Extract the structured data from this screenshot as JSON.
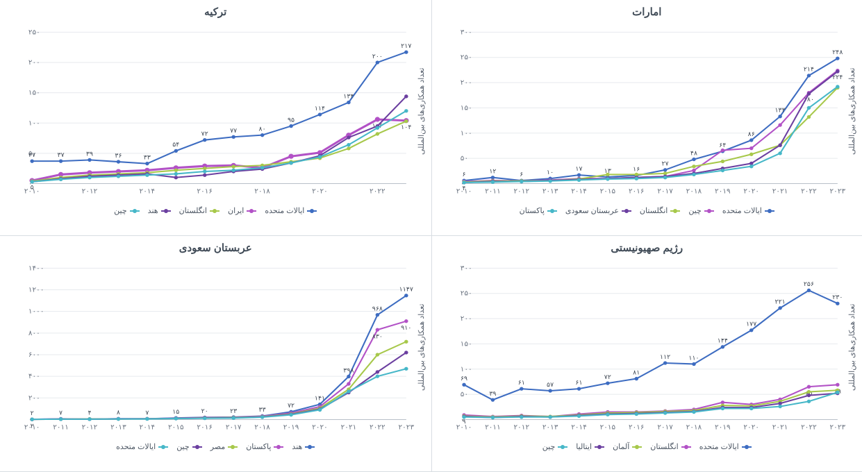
{
  "global": {
    "yaxis_label": "تعداد همکاری‌های بین‌المللی",
    "background_color": "#ffffff",
    "grid_color": "#e7eaee",
    "axis_color": "#b8c0c9",
    "tick_fontsize": 10,
    "title_fontsize": 15,
    "label_fontsize": 11,
    "datalabel_fontsize": 9,
    "datalabel_color": "#3d4652"
  },
  "panels": [
    {
      "id": "uae",
      "title": "امارات",
      "type": "line",
      "xlabels": [
        "۲۰۱۰",
        "۲۰۱۱",
        "۲۰۱۲",
        "۲۰۱۳",
        "۲۰۱۴",
        "۲۰۱۵",
        "۲۰۱۶",
        "۲۰۱۷",
        "۲۰۱۸",
        "۲۰۱۹",
        "۲۰۲۰",
        "۲۰۲۱",
        "۲۰۲۲",
        "۲۰۲۳"
      ],
      "ylim": [
        0,
        300
      ],
      "ytick_step": 50,
      "series": [
        {
          "name": "ایالات متحده",
          "color": "#3d6cc1",
          "values": [
            6,
            12,
            6,
            10,
            17,
            13,
            16,
            27,
            48,
            64,
            86,
            133,
            214,
            248
          ]
        },
        {
          "name": "چین",
          "color": "#b251c6",
          "values": [
            4,
            6,
            5,
            7,
            10,
            10,
            12,
            14,
            26,
            66,
            70,
            116,
            180,
            224
          ]
        },
        {
          "name": "انگلستان",
          "color": "#a7c84a",
          "values": [
            3,
            5,
            5,
            6,
            9,
            18,
            18,
            20,
            34,
            44,
            58,
            76,
            132,
            190
          ]
        },
        {
          "name": "عربستان سعودی",
          "color": "#6b3fa0",
          "values": [
            2,
            4,
            4,
            6,
            8,
            10,
            12,
            14,
            20,
            30,
            40,
            76,
            178,
            222
          ]
        },
        {
          "name": "پاکستان",
          "color": "#46b7c8",
          "values": [
            2,
            3,
            4,
            5,
            7,
            9,
            10,
            12,
            18,
            26,
            34,
            60,
            150,
            192
          ]
        }
      ],
      "toplabel_series": 0
    },
    {
      "id": "turkiye",
      "title": "ترکیه",
      "type": "line",
      "xlabels": [
        "۲۰۱۰",
        "",
        "۲۰۱۲",
        "",
        "۲۰۱۴",
        "",
        "۲۰۱۶",
        "",
        "۲۰۱۸",
        "",
        "۲۰۲۰",
        "",
        "۲۰۲۲",
        ""
      ],
      "ylim": [
        0,
        250
      ],
      "ytick_step": 50,
      "series": [
        {
          "name": "ایالات متحده",
          "color": "#3d6cc1",
          "values": [
            37,
            37,
            39,
            36,
            33,
            54,
            72,
            77,
            80,
            95,
            114,
            134,
            200,
            217
          ]
        },
        {
          "name": "ایران",
          "color": "#b251c6",
          "values": [
            5,
            15,
            18,
            20,
            22,
            26,
            29,
            30,
            26,
            45,
            51,
            80,
            106,
            104
          ],
          "line_width": 3
        },
        {
          "name": "انگلستان",
          "color": "#a7c84a",
          "values": [
            4,
            10,
            14,
            16,
            18,
            22,
            25,
            28,
            30,
            36,
            42,
            58,
            82,
            103
          ]
        },
        {
          "name": "هند",
          "color": "#6b3fa0",
          "values": [
            3,
            8,
            12,
            14,
            16,
            10,
            14,
            20,
            24,
            34,
            46,
            76,
            95,
            144
          ]
        },
        {
          "name": "چین",
          "color": "#46b7c8",
          "values": [
            3,
            7,
            10,
            12,
            14,
            16,
            20,
            22,
            26,
            34,
            44,
            64,
            92,
            120
          ]
        }
      ],
      "toplabel_series": 0
    },
    {
      "id": "israel",
      "title": "رژیم صهیونیستی",
      "type": "line",
      "xlabels": [
        "۲۰۱۰",
        "۲۰۱۱",
        "۲۰۱۲",
        "۲۰۱۳",
        "۲۰۱۴",
        "۲۰۱۵",
        "۲۰۱۶",
        "۲۰۱۷",
        "۲۰۱۸",
        "۲۰۱۹",
        "۲۰۲۰",
        "۲۰۲۱",
        "۲۰۲۲",
        "۲۰۲۳"
      ],
      "ylim": [
        0,
        300
      ],
      "ytick_step": 50,
      "series": [
        {
          "name": "ایالات متحده",
          "color": "#3d6cc1",
          "values": [
            69,
            39,
            61,
            57,
            61,
            72,
            81,
            112,
            110,
            144,
            177,
            221,
            256,
            230
          ]
        },
        {
          "name": "انگلستان",
          "color": "#b251c6",
          "values": [
            9,
            6,
            8,
            6,
            11,
            15,
            15,
            17,
            20,
            34,
            30,
            40,
            65,
            69
          ]
        },
        {
          "name": "آلمان",
          "color": "#a7c84a",
          "values": [
            7,
            5,
            7,
            6,
            9,
            13,
            14,
            16,
            18,
            28,
            27,
            36,
            55,
            58
          ]
        },
        {
          "name": "ایتالیا",
          "color": "#6b3fa0",
          "values": [
            6,
            4,
            6,
            5,
            8,
            11,
            12,
            14,
            16,
            24,
            24,
            32,
            48,
            52
          ]
        },
        {
          "name": "چین",
          "color": "#46b7c8",
          "values": [
            5,
            4,
            5,
            5,
            7,
            10,
            11,
            13,
            15,
            22,
            22,
            26,
            36,
            54
          ]
        }
      ],
      "toplabel_series": 0
    },
    {
      "id": "ksa",
      "title": "عربستان سعودی",
      "type": "line",
      "xlabels": [
        "۲۰۱۰",
        "۲۰۱۱",
        "۲۰۱۲",
        "۲۰۱۳",
        "۲۰۱۴",
        "۲۰۱۵",
        "۲۰۱۶",
        "۲۰۱۷",
        "۲۰۱۸",
        "۲۰۱۹",
        "۲۰۲۰",
        "۲۰۲۱",
        "۲۰۲۲",
        "۲۰۲۳"
      ],
      "ylim": [
        0,
        1400
      ],
      "ytick_step": 200,
      "series": [
        {
          "name": "هند",
          "color": "#3d6cc1",
          "values": [
            2,
            7,
            4,
            8,
            7,
            15,
            20,
            23,
            33,
            72,
            141,
            398,
            968,
            1147
          ]
        },
        {
          "name": "پاکستان",
          "color": "#b251c6",
          "values": [
            2,
            5,
            5,
            7,
            8,
            12,
            18,
            20,
            30,
            60,
            120,
            330,
            830,
            910
          ]
        },
        {
          "name": "مصر",
          "color": "#a7c84a",
          "values": [
            2,
            4,
            5,
            6,
            7,
            10,
            16,
            18,
            26,
            52,
            105,
            280,
            600,
            720
          ]
        },
        {
          "name": "چین",
          "color": "#6b3fa0",
          "values": [
            2,
            4,
            4,
            6,
            7,
            10,
            14,
            16,
            24,
            48,
            96,
            250,
            440,
            620
          ]
        },
        {
          "name": "ایالات متحده",
          "color": "#46b7c8",
          "values": [
            2,
            4,
            4,
            5,
            6,
            9,
            12,
            14,
            22,
            44,
            90,
            260,
            400,
            470
          ]
        }
      ],
      "toplabel_series": 0
    }
  ]
}
